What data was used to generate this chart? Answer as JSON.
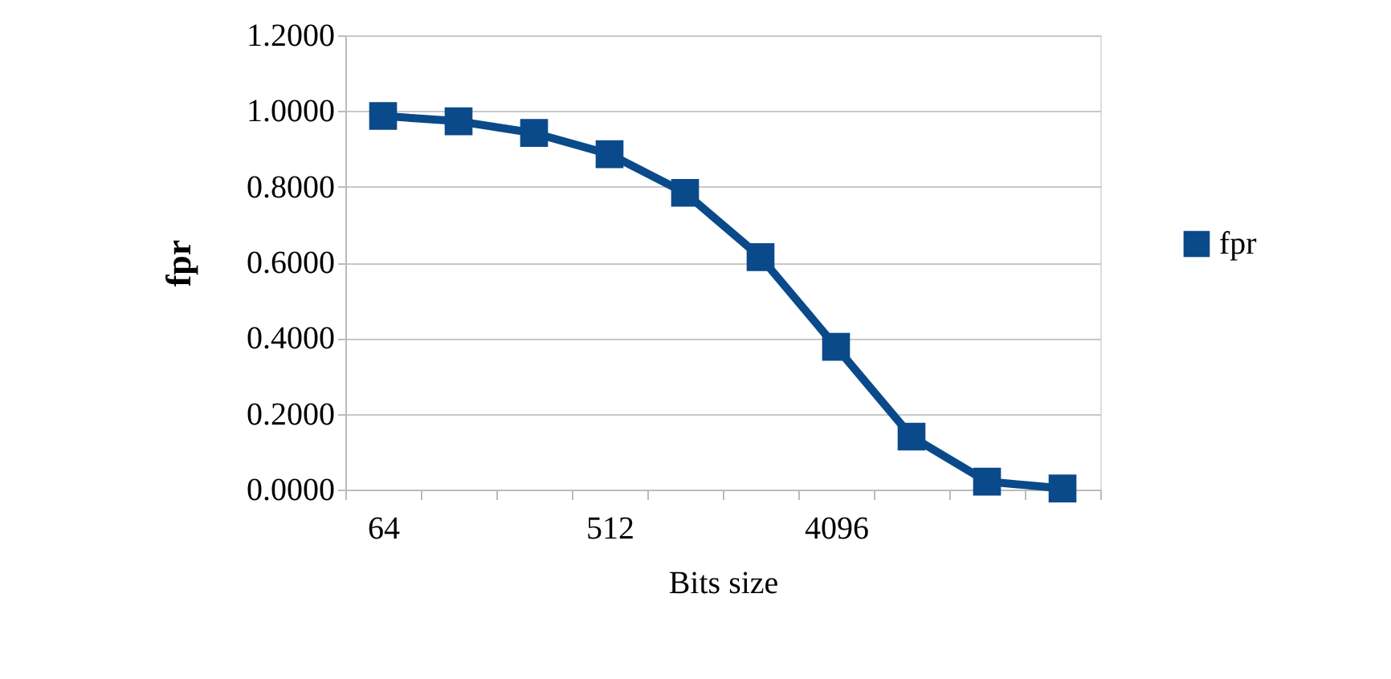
{
  "chart_data": {
    "type": "line",
    "xlabel": "Bits size",
    "ylabel": "fpr",
    "categories": [
      "64",
      null,
      null,
      "512",
      null,
      null,
      "4096",
      null,
      null,
      null
    ],
    "series": [
      {
        "name": "fpr",
        "color": "#0a4a8a",
        "values": [
          0.987,
          0.973,
          0.942,
          0.886,
          0.784,
          0.614,
          0.377,
          0.14,
          0.021,
          0.003
        ]
      }
    ],
    "ylim": [
      0,
      1.2
    ],
    "yticks": [
      {
        "value": 0,
        "label": "0.0000"
      },
      {
        "value": 0.2,
        "label": "0.2000"
      },
      {
        "value": 0.4,
        "label": "0.4000"
      },
      {
        "value": 0.6,
        "label": "0.6000"
      },
      {
        "value": 0.8,
        "label": "0.8000"
      },
      {
        "value": 1.0,
        "label": "1.0000"
      },
      {
        "value": 1.2,
        "label": "1.2000"
      }
    ],
    "grid": "y",
    "legend": "right",
    "marker": "square",
    "line_style": "solid"
  }
}
